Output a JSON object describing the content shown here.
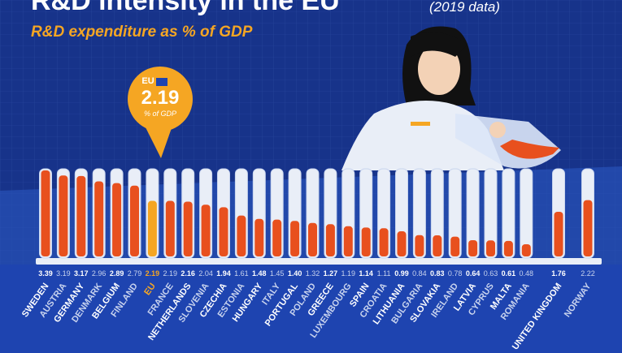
{
  "chart_data": {
    "type": "tubes",
    "title": "R&D intensity in the EU",
    "title_note": "(2019 data)",
    "subtitle": "R&D expenditure as % of GDP",
    "callout_unit": "% of GDP",
    "highlight": "EU",
    "color": "#e8501e",
    "highlight_color": "#f5a623",
    "categories": [
      "SWEDEN",
      "AUSTRIA",
      "GERMANY",
      "DENMARK",
      "BELGIUM",
      "FINLAND",
      "EU",
      "FRANCE",
      "NETHERLANDS",
      "SLOVENIA",
      "CZECHIA",
      "ESTONIA",
      "HUNGARY",
      "ITALY",
      "PORTUGAL",
      "POLAND",
      "GREECE",
      "LUXEMBOURG",
      "SPAIN",
      "CROATIA",
      "LITHUANIA",
      "BULGARIA",
      "SLOVAKIA",
      "IRELAND",
      "LATVIA",
      "CYPRUS",
      "MALTA",
      "ROMANIA",
      "UNITED KINGDOM",
      "NORWAY"
    ],
    "values": [
      3.39,
      3.19,
      3.17,
      2.96,
      2.89,
      2.79,
      2.19,
      2.19,
      2.16,
      2.04,
      1.94,
      1.61,
      1.48,
      1.45,
      1.4,
      1.32,
      1.27,
      1.19,
      1.14,
      1.11,
      0.99,
      0.84,
      0.83,
      0.78,
      0.64,
      0.63,
      0.61,
      0.48,
      1.76,
      2.22
    ],
    "value_labels": [
      "3.39",
      "3.19",
      "3.17",
      "2.96",
      "2.89",
      "2.79",
      "2.19",
      "2.19",
      "2.16",
      "2.04",
      "1.94",
      "1.61",
      "1.48",
      "1.45",
      "1.40",
      "1.32",
      "1.27",
      "1.19",
      "1.14",
      "1.11",
      "0.99",
      "0.84",
      "0.83",
      "0.78",
      "0.64",
      "0.63",
      "0.61",
      "0.48",
      "1.76",
      "2.22"
    ]
  }
}
